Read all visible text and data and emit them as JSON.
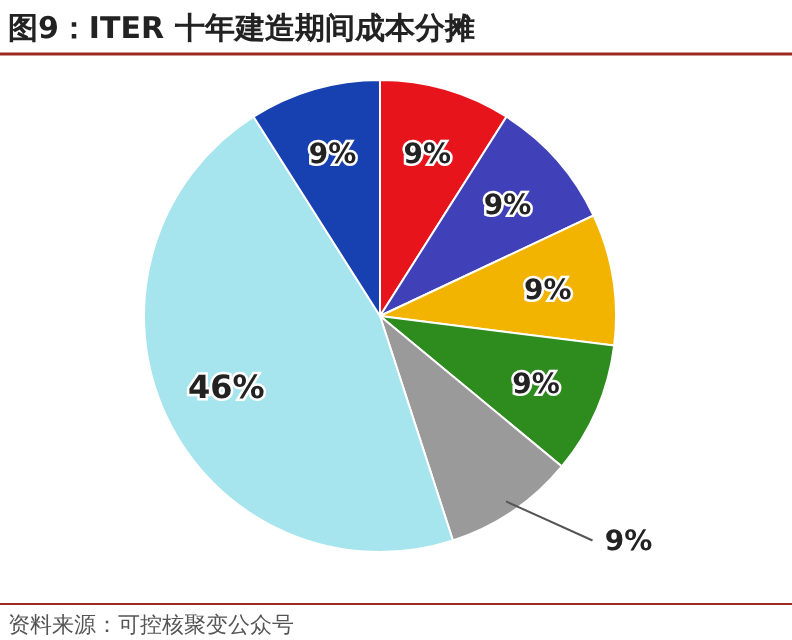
{
  "chart_data": {
    "type": "pie",
    "title": "图9：ITER 十年建造期间成本分摊",
    "categories": [
      null,
      null,
      null,
      null,
      null,
      null,
      null
    ],
    "values": [
      9,
      9,
      9,
      9,
      9,
      46,
      9
    ],
    "value_labels": [
      "9%",
      "9%",
      "9%",
      "9%",
      "9%",
      "46%",
      "9%"
    ],
    "colors": [
      "#e8141c",
      "#4040b8",
      "#f2b400",
      "#2e8b1e",
      "#9a9a9a",
      "#a6e4ee",
      "#1740b0"
    ],
    "annotations": [
      "资料来源：可控核聚变公众号"
    ]
  }
}
